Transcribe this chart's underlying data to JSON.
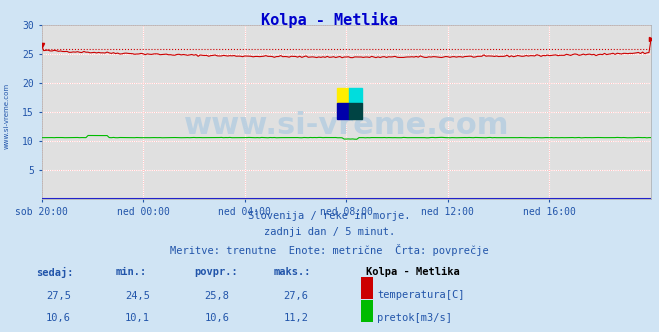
{
  "title": "Kolpa - Metlika",
  "title_color": "#0000cc",
  "bg_color": "#d0e4f4",
  "plot_bg_color": "#e0e0e0",
  "temp_avg": 25.8,
  "flow_avg": 10.6,
  "xtick_labels": [
    "sob 20:00",
    "ned 00:00",
    "ned 04:00",
    "ned 08:00",
    "ned 12:00",
    "ned 16:00"
  ],
  "ytick_labels": [
    "",
    "5",
    "10",
    "15",
    "20",
    "25",
    "30"
  ],
  "subtitle1": "Slovenija / reke in morje.",
  "subtitle2": "zadnji dan / 5 minut.",
  "subtitle3": "Meritve: trenutne  Enote: metrične  Črta: povprečje",
  "legend_title": "Kolpa - Metlika",
  "legend_items": [
    {
      "label": "temperatura[C]",
      "color": "#cc0000"
    },
    {
      "label": "pretok[m3/s]",
      "color": "#00bb00"
    }
  ],
  "table_headers": [
    "sedaj:",
    "min.:",
    "povpr.:",
    "maks.:"
  ],
  "table_row1": [
    "27,5",
    "24,5",
    "25,8",
    "27,6"
  ],
  "table_row2": [
    "10,6",
    "10,1",
    "10,6",
    "11,2"
  ],
  "sidebar_text": "www.si-vreme.com",
  "sidebar_color": "#2255aa",
  "text_color": "#2255aa",
  "watermark_text": "www.si-vreme.com",
  "temp_color": "#cc0000",
  "flow_color": "#00bb00",
  "blue_line_color": "#2222cc",
  "ylim": [
    0,
    30
  ],
  "n_points": 289
}
